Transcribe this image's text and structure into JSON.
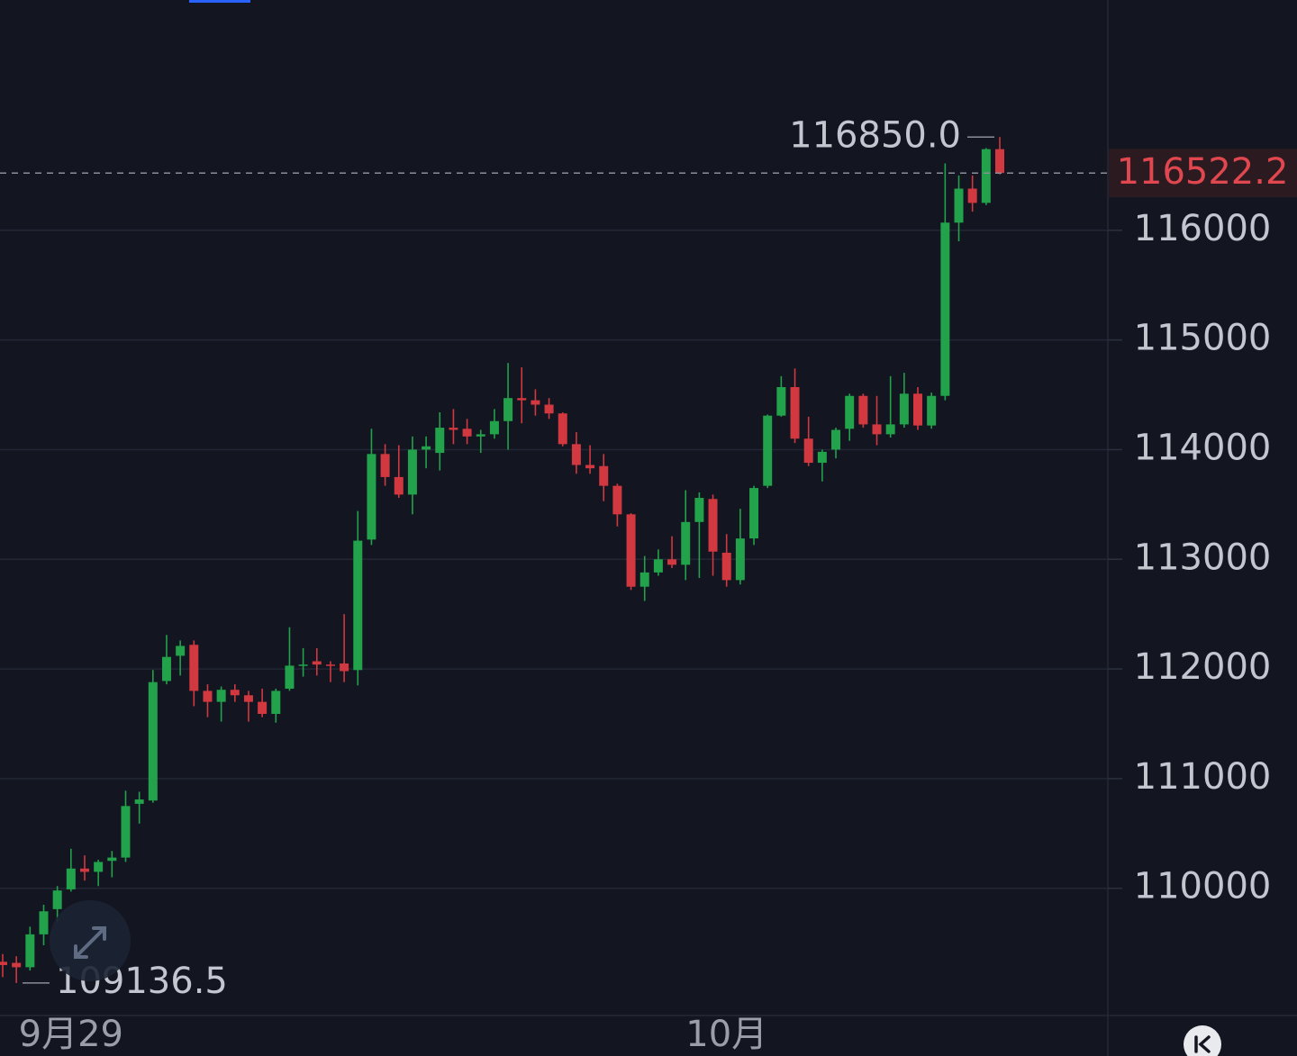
{
  "chart_data": {
    "type": "candlestick",
    "up_color": "#22a24a",
    "down_color": "#d2383f",
    "grid": true,
    "categories": [
      null,
      null,
      null,
      null,
      null,
      "9月29",
      null,
      null,
      null,
      null,
      null,
      null,
      null,
      null,
      null,
      null,
      null,
      null,
      null,
      null,
      null,
      null,
      null,
      null,
      null,
      null,
      null,
      null,
      null,
      null,
      null,
      null,
      null,
      null,
      null,
      null,
      null,
      null,
      null,
      null,
      null,
      null,
      null,
      null,
      null,
      null,
      null,
      null,
      null,
      null,
      null,
      null,
      null,
      "10月",
      null,
      null,
      null,
      null,
      null,
      null,
      null,
      null,
      null,
      null,
      null,
      null,
      null,
      null,
      null,
      null,
      null,
      null,
      null,
      null
    ],
    "open": [
      109330,
      109320,
      109280,
      109580,
      109810,
      109990,
      110180,
      110150,
      110250,
      110280,
      110770,
      110800,
      111890,
      112120,
      112220,
      111800,
      111700,
      111810,
      111760,
      111700,
      111590,
      111820,
      112030,
      112070,
      112040,
      112050,
      111990,
      113180,
      113960,
      113750,
      113590,
      114000,
      113970,
      114200,
      114190,
      114120,
      114140,
      114260,
      114470,
      114450,
      114410,
      114330,
      114050,
      113860,
      113850,
      113670,
      113410,
      112750,
      112880,
      113000,
      112950,
      113340,
      113550,
      113060,
      112810,
      113190,
      113670,
      114310,
      114570,
      114100,
      113880,
      114000,
      114190,
      114490,
      114230,
      114140,
      114230,
      114510,
      114220,
      114490,
      116070,
      116380,
      116250,
      116740
    ],
    "high": [
      109400,
      109380,
      109650,
      109850,
      110020,
      110360,
      110300,
      110260,
      110340,
      110890,
      110880,
      111990,
      112310,
      112260,
      112260,
      111860,
      111840,
      111860,
      111800,
      111820,
      111820,
      112380,
      112190,
      112190,
      112070,
      112500,
      113440,
      114190,
      114050,
      114040,
      114120,
      114120,
      114340,
      114370,
      114280,
      114180,
      114370,
      114790,
      114750,
      114550,
      114470,
      114340,
      114160,
      114040,
      113960,
      113690,
      113420,
      113030,
      113090,
      113210,
      113630,
      113610,
      113590,
      113230,
      113460,
      113670,
      114320,
      114670,
      114740,
      114300,
      114000,
      114200,
      114510,
      114510,
      114490,
      114670,
      114700,
      114570,
      114520,
      116610,
      116500,
      116500,
      116750,
      116850
    ],
    "low": [
      109190,
      109136.5,
      109250,
      109480,
      109690,
      109970,
      110070,
      110020,
      110100,
      110240,
      110590,
      110780,
      111860,
      111940,
      111660,
      111560,
      111520,
      111700,
      111520,
      111560,
      111510,
      111800,
      111930,
      111940,
      111880,
      111880,
      111850,
      113130,
      113670,
      113560,
      113410,
      113830,
      113810,
      114050,
      114050,
      113970,
      114100,
      114000,
      114240,
      114310,
      114280,
      114030,
      113780,
      113780,
      113530,
      113300,
      112720,
      112620,
      112850,
      112920,
      112810,
      112830,
      112850,
      112750,
      112770,
      113130,
      113650,
      114300,
      114060,
      113850,
      113710,
      113920,
      114080,
      114200,
      114040,
      114110,
      114200,
      114180,
      114190,
      114450,
      115900,
      116170,
      116230,
      116510
    ],
    "close": [
      109300,
      109280,
      109580,
      109790,
      109980,
      110180,
      110150,
      110240,
      110280,
      110750,
      110810,
      111880,
      112110,
      112210,
      111800,
      111700,
      111810,
      111760,
      111700,
      111590,
      111800,
      112030,
      112040,
      112040,
      112030,
      111980,
      113170,
      113960,
      113750,
      113590,
      114000,
      114030,
      114200,
      114180,
      114120,
      114140,
      114260,
      114470,
      114450,
      114410,
      114330,
      114050,
      113860,
      113830,
      113670,
      113410,
      112750,
      112880,
      113000,
      112950,
      113340,
      113560,
      113070,
      112810,
      113190,
      113650,
      114310,
      114570,
      114100,
      113880,
      113980,
      114180,
      114490,
      114230,
      114140,
      114230,
      114510,
      114220,
      114490,
      116070,
      116380,
      116250,
      116740,
      116522.2
    ],
    "ylim": [
      108840,
      118100
    ],
    "yticks": [
      110000,
      111000,
      112000,
      113000,
      114000,
      115000,
      116000
    ],
    "high_annotation": {
      "value": 116850,
      "label": "116850.0"
    },
    "low_annotation": {
      "value": 109136.5,
      "label": "109136.5"
    },
    "last_price": {
      "value": 116522.2,
      "label": "116522.2"
    }
  }
}
